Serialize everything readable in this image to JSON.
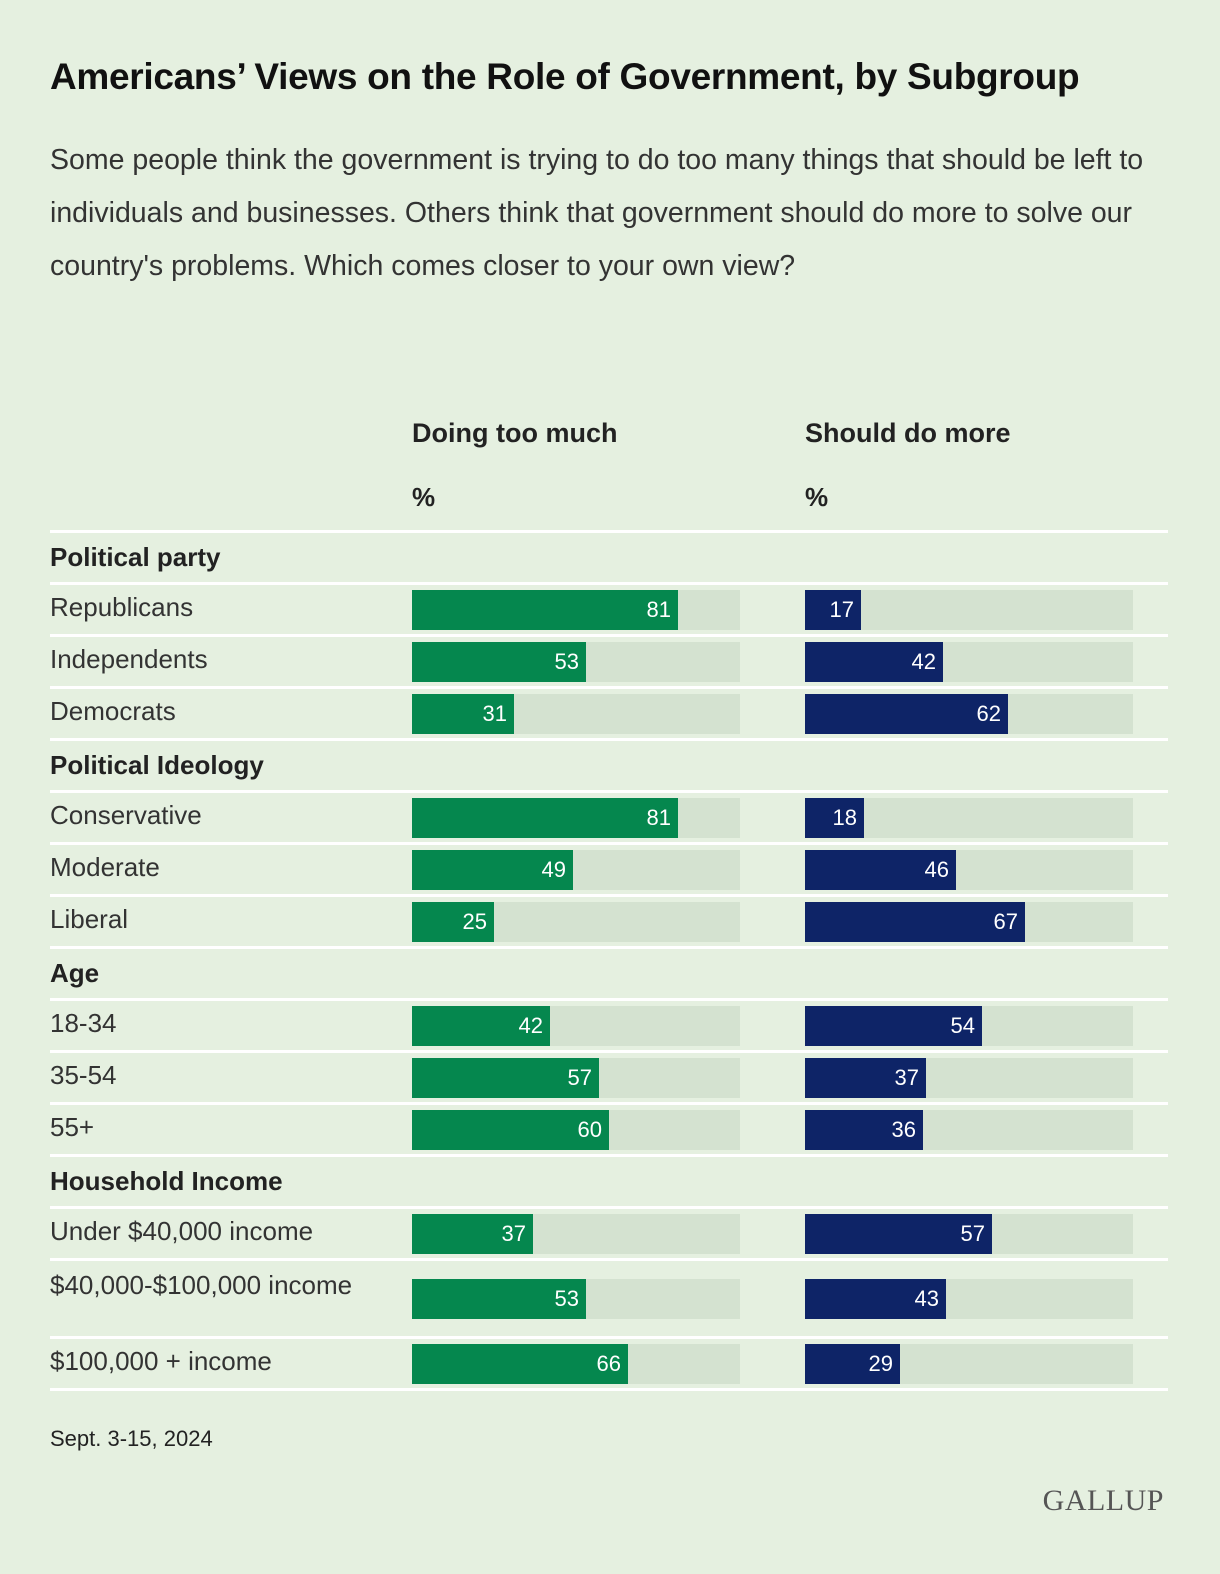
{
  "header": {
    "title": "Americans’ Views on the Role of Government, by Subgroup",
    "subtitle": "Some people think the government is trying to do too many things that should be left to individuals and businesses. Others think that government should do more to solve our country's problems. Which comes closer to your own view?"
  },
  "footer": {
    "date": "Sept. 3-15, 2024",
    "logo": "GALLUP"
  },
  "colors": {
    "doing_too_much": "#05874e",
    "should_do_more": "#0e2467",
    "track": "#d4e2d0",
    "background": "#e5f0e0"
  },
  "chart_data": {
    "type": "bar",
    "orientation": "horizontal",
    "xlim": [
      0,
      100
    ],
    "columns": [
      {
        "name": "Doing too much",
        "unit": "%"
      },
      {
        "name": "Should do more",
        "unit": "%"
      }
    ],
    "groups": [
      {
        "name": "Political party",
        "rows": [
          {
            "label": "Republicans",
            "values": [
              81,
              17
            ]
          },
          {
            "label": "Independents",
            "values": [
              53,
              42
            ]
          },
          {
            "label": "Democrats",
            "values": [
              31,
              62
            ]
          }
        ]
      },
      {
        "name": "Political Ideology",
        "rows": [
          {
            "label": "Conservative",
            "values": [
              81,
              18
            ]
          },
          {
            "label": "Moderate",
            "values": [
              49,
              46
            ]
          },
          {
            "label": "Liberal",
            "values": [
              25,
              67
            ]
          }
        ]
      },
      {
        "name": "Age",
        "rows": [
          {
            "label": "18-34",
            "values": [
              42,
              54
            ]
          },
          {
            "label": "35-54",
            "values": [
              57,
              37
            ]
          },
          {
            "label": "55+",
            "values": [
              60,
              36
            ]
          }
        ]
      },
      {
        "name": "Household Income",
        "rows": [
          {
            "label": "Under $40,000 income",
            "values": [
              37,
              57
            ]
          },
          {
            "label": "$40,000-$100,000 income",
            "values": [
              53,
              43
            ]
          },
          {
            "label": "$100,000 + income",
            "values": [
              66,
              29
            ]
          }
        ]
      }
    ]
  }
}
